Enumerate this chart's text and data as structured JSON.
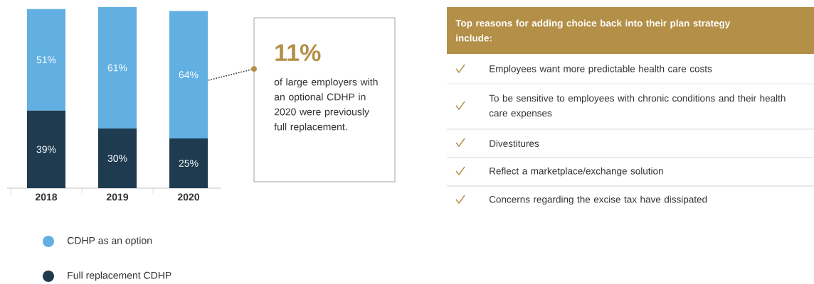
{
  "chart_data": [
    {
      "type": "bar",
      "stacked": true,
      "data_labels": true,
      "legend": "bottom",
      "categories": [
        "2018",
        "2019",
        "2020"
      ],
      "series": [
        {
          "name": "Full replacement CDHP",
          "color": "#1e3b4f",
          "values": [
            39,
            30,
            25
          ],
          "value_labels": [
            "39%",
            "30%",
            "25%"
          ]
        },
        {
          "name": "CDHP as an option",
          "color": "#62b0e2",
          "values": [
            51,
            61,
            64
          ],
          "value_labels": [
            "51%",
            "61%",
            "64%"
          ]
        }
      ],
      "annotations": [
        "11%",
        "of large employers with an optional CDHP in 2020 were previously full replacement."
      ]
    },
    {
      "type": "other",
      "title": "Top reasons for adding choice back into their plan strategy include:",
      "annotations": [
        "Employees want more predictable health care costs",
        "To be sensitive to employees with chronic conditions and their health care expenses",
        "Divestitures",
        "Reflect a marketplace/exchange solution",
        "Concerns regarding the excise tax have dissipated"
      ]
    }
  ]
}
